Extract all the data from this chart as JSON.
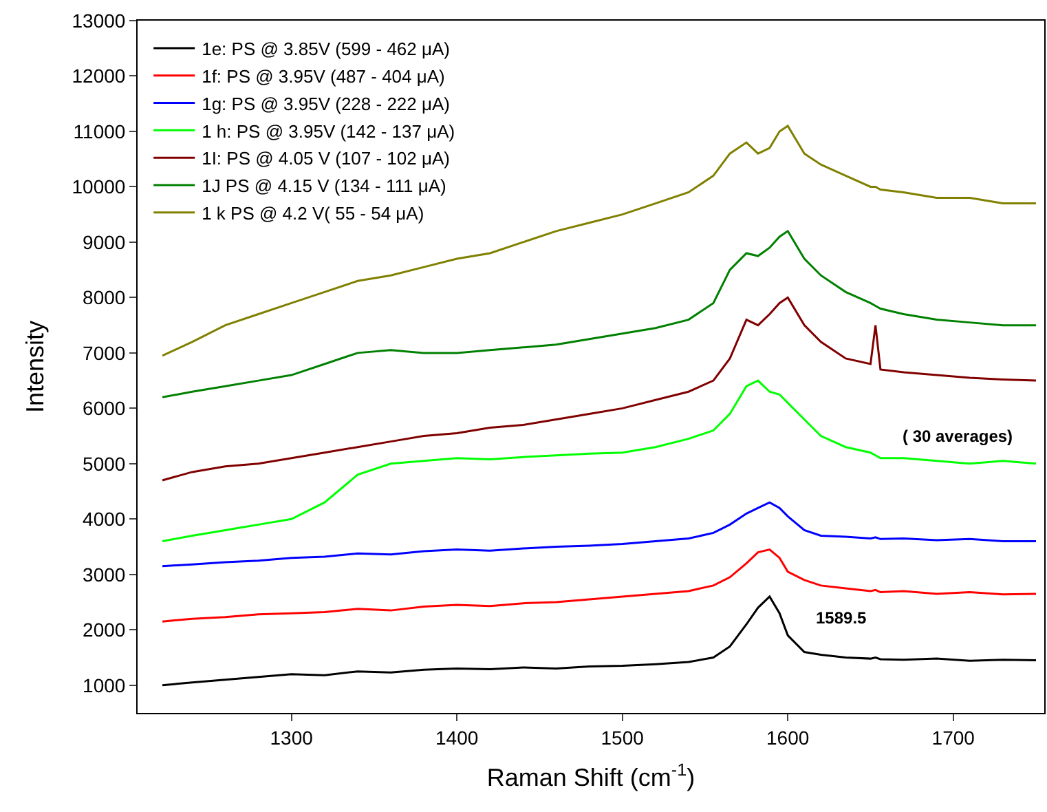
{
  "chart_data": {
    "type": "line",
    "xlabel": "Raman Shift (cm$^{-1}$)",
    "ylabel": "Intensity",
    "xlim": [
      1207,
      1755
    ],
    "ylim": [
      500,
      13000
    ],
    "xticks": [
      1300,
      1400,
      1500,
      1600,
      1700
    ],
    "yticks": [
      1000,
      2000,
      3000,
      4000,
      5000,
      6000,
      7000,
      8000,
      9000,
      10000,
      11000,
      12000,
      13000
    ],
    "legend": "top left",
    "marker": "none",
    "line_style": "solid",
    "x": [
      1222,
      1240,
      1260,
      1280,
      1300,
      1320,
      1340,
      1360,
      1380,
      1400,
      1420,
      1440,
      1460,
      1480,
      1500,
      1520,
      1540,
      1555,
      1565,
      1575,
      1582,
      1589,
      1595,
      1600,
      1610,
      1620,
      1635,
      1650,
      1653,
      1656,
      1670,
      1690,
      1710,
      1730,
      1750
    ],
    "series": [
      {
        "name": "1e: PS @ 3.85V (599 - 462 μA)",
        "color": "#000000",
        "values": [
          1000,
          1050,
          1100,
          1150,
          1200,
          1180,
          1250,
          1230,
          1280,
          1300,
          1290,
          1320,
          1300,
          1340,
          1350,
          1380,
          1420,
          1500,
          1700,
          2100,
          2400,
          2600,
          2300,
          1900,
          1600,
          1550,
          1500,
          1480,
          1500,
          1470,
          1460,
          1480,
          1440,
          1460,
          1450
        ]
      },
      {
        "name": "1f: PS @ 3.95V (487 - 404 μA)",
        "color": "#ff0000",
        "values": [
          2150,
          2200,
          2230,
          2280,
          2300,
          2320,
          2380,
          2350,
          2420,
          2450,
          2430,
          2480,
          2500,
          2550,
          2600,
          2650,
          2700,
          2800,
          2950,
          3200,
          3400,
          3450,
          3300,
          3050,
          2900,
          2800,
          2750,
          2700,
          2720,
          2680,
          2700,
          2650,
          2680,
          2640,
          2650
        ]
      },
      {
        "name": "1g: PS @ 3.95V (228 - 222 μA)",
        "color": "#0000ff",
        "values": [
          3150,
          3180,
          3220,
          3250,
          3300,
          3320,
          3380,
          3360,
          3420,
          3450,
          3430,
          3470,
          3500,
          3520,
          3550,
          3600,
          3650,
          3750,
          3900,
          4100,
          4200,
          4300,
          4200,
          4050,
          3800,
          3700,
          3680,
          3650,
          3670,
          3640,
          3650,
          3620,
          3640,
          3600,
          3600
        ]
      },
      {
        "name": "1 h: PS @ 3.95V (142 - 137 μA)",
        "color": "#00ff00",
        "values": [
          3600,
          3700,
          3800,
          3900,
          4000,
          4300,
          4800,
          5000,
          5050,
          5100,
          5080,
          5120,
          5150,
          5180,
          5200,
          5300,
          5450,
          5600,
          5900,
          6400,
          6500,
          6300,
          6250,
          6100,
          5800,
          5500,
          5300,
          5200,
          5150,
          5100,
          5100,
          5050,
          5000,
          5050,
          5000
        ]
      },
      {
        "name": "1I: PS @ 4.05 V (107 - 102 μA)",
        "color": "#800000",
        "values": [
          4700,
          4850,
          4950,
          5000,
          5100,
          5200,
          5300,
          5400,
          5500,
          5550,
          5650,
          5700,
          5800,
          5900,
          6000,
          6150,
          6300,
          6500,
          6900,
          7600,
          7500,
          7700,
          7900,
          8000,
          7500,
          7200,
          6900,
          6800,
          7500,
          6700,
          6650,
          6600,
          6550,
          6520,
          6500
        ]
      },
      {
        "name": "1J PS @ 4.15 V (134 - 111 μA)",
        "color": "#008000",
        "values": [
          6200,
          6300,
          6400,
          6500,
          6600,
          6800,
          7000,
          7050,
          7000,
          7000,
          7050,
          7100,
          7150,
          7250,
          7350,
          7450,
          7600,
          7900,
          8500,
          8800,
          8750,
          8900,
          9100,
          9200,
          8700,
          8400,
          8100,
          7900,
          7850,
          7800,
          7700,
          7600,
          7550,
          7500,
          7500
        ]
      },
      {
        "name": "1 k PS @ 4.2 V( 55 - 54 μA)",
        "color": "#808000",
        "values": [
          6950,
          7200,
          7500,
          7700,
          7900,
          8100,
          8300,
          8400,
          8550,
          8700,
          8800,
          9000,
          9200,
          9350,
          9500,
          9700,
          9900,
          10200,
          10600,
          10800,
          10600,
          10700,
          11000,
          11100,
          10600,
          10400,
          10200,
          10000,
          10000,
          9950,
          9900,
          9800,
          9800,
          9700,
          9700
        ]
      }
    ],
    "annotations": [
      "1589.5",
      "( 30 averages)"
    ]
  }
}
